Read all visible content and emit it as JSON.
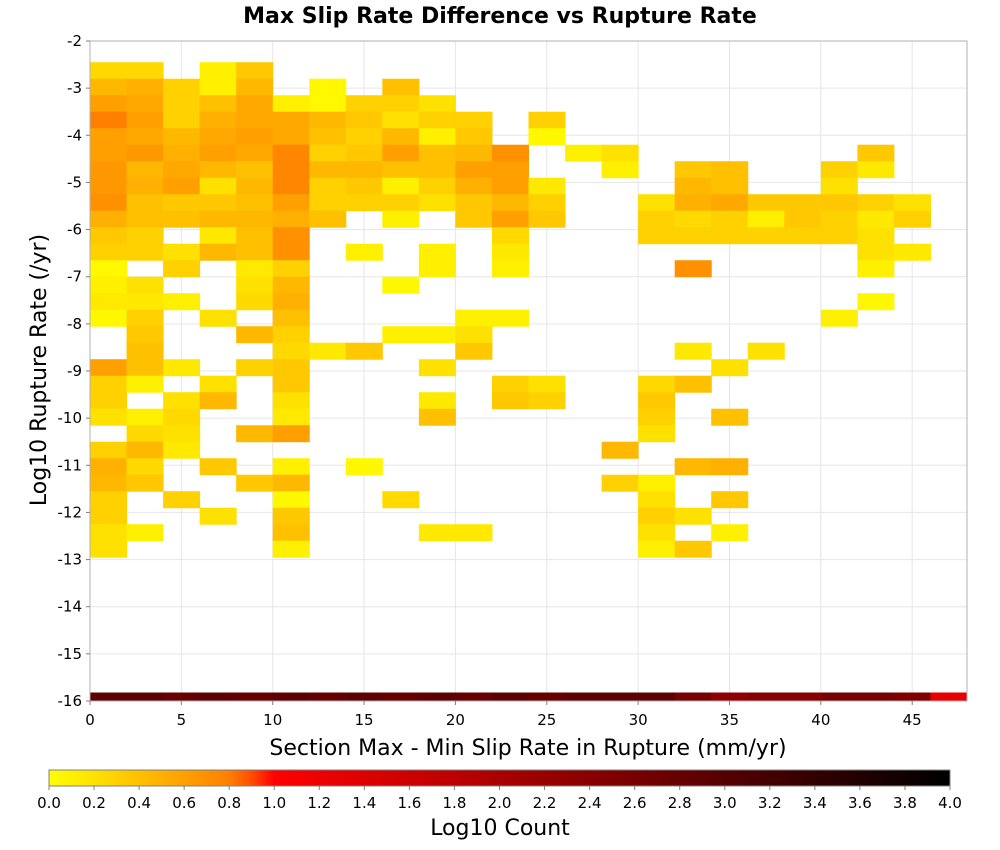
{
  "chart_data": {
    "type": "heatmap",
    "title": "Max Slip Rate Difference vs Rupture Rate",
    "xlabel": "Section Max - Min Slip Rate in Rupture (mm/yr)",
    "ylabel": "Log10 Rupture Rate (/yr)",
    "xlim": [
      0,
      48
    ],
    "ylim": [
      -16,
      -2
    ],
    "x_ticks": [
      "0",
      "5",
      "10",
      "15",
      "20",
      "25",
      "30",
      "35",
      "40",
      "45"
    ],
    "y_ticks": [
      "-2",
      "-3",
      "-4",
      "-5",
      "-6",
      "-7",
      "-8",
      "-9",
      "-10",
      "-11",
      "-12",
      "-13",
      "-14",
      "-15",
      "-16"
    ],
    "x_bin_width": 2,
    "y_bin_height": 0.35,
    "grid": true,
    "colorbar": {
      "label": "Log10 Count",
      "min": 0.0,
      "max": 4.0,
      "ticks": [
        "0.0",
        "0.2",
        "0.4",
        "0.6",
        "0.8",
        "1.0",
        "1.2",
        "1.4",
        "1.6",
        "1.8",
        "2.0",
        "2.2",
        "2.4",
        "2.6",
        "2.8",
        "3.0",
        "3.2",
        "3.4",
        "3.6",
        "3.8",
        "4.0"
      ],
      "stops": [
        [
          0.0,
          "#ffff00"
        ],
        [
          0.2,
          "#ffe100"
        ],
        [
          0.4,
          "#ffc000"
        ],
        [
          0.6,
          "#ffa000"
        ],
        [
          0.8,
          "#ff7f00"
        ],
        [
          0.9,
          "#ff4c00"
        ],
        [
          1.0,
          "#ff0000"
        ],
        [
          1.4,
          "#dd0000"
        ],
        [
          1.8,
          "#bb0000"
        ],
        [
          2.2,
          "#990000"
        ],
        [
          2.6,
          "#770000"
        ],
        [
          3.0,
          "#550000"
        ],
        [
          3.4,
          "#330000"
        ],
        [
          4.0,
          "#000000"
        ]
      ]
    },
    "rows": [
      {
        "y": -2.45,
        "x": [
          0,
          2,
          6,
          8
        ],
        "v": [
          0.25,
          0.25,
          0.1,
          0.35
        ]
      },
      {
        "y": -2.8,
        "x": [
          0,
          2,
          4,
          6,
          8,
          12,
          16
        ],
        "v": [
          0.45,
          0.5,
          0.3,
          0.1,
          0.45,
          0.05,
          0.4
        ]
      },
      {
        "y": -3.15,
        "x": [
          0,
          2,
          4,
          6,
          8,
          10,
          12,
          14,
          16,
          18
        ],
        "v": [
          0.6,
          0.55,
          0.3,
          0.4,
          0.55,
          0.1,
          0.05,
          0.3,
          0.3,
          0.2
        ]
      },
      {
        "y": -3.5,
        "x": [
          0,
          2,
          4,
          6,
          8,
          10,
          12,
          14,
          16,
          18,
          20,
          24
        ],
        "v": [
          0.8,
          0.6,
          0.3,
          0.5,
          0.55,
          0.55,
          0.45,
          0.35,
          0.2,
          0.3,
          0.3,
          0.3
        ]
      },
      {
        "y": -3.85,
        "x": [
          0,
          2,
          4,
          6,
          8,
          10,
          12,
          14,
          16,
          18,
          20,
          24
        ],
        "v": [
          0.6,
          0.55,
          0.45,
          0.55,
          0.6,
          0.55,
          0.4,
          0.3,
          0.45,
          0.1,
          0.35,
          0.05
        ]
      },
      {
        "y": -4.2,
        "x": [
          0,
          2,
          4,
          6,
          8,
          10,
          12,
          14,
          16,
          18,
          20,
          22,
          26,
          28,
          42
        ],
        "v": [
          0.6,
          0.65,
          0.5,
          0.6,
          0.55,
          0.75,
          0.3,
          0.35,
          0.6,
          0.4,
          0.45,
          0.7,
          0.1,
          0.2,
          0.35
        ]
      },
      {
        "y": -4.55,
        "x": [
          0,
          2,
          4,
          6,
          8,
          10,
          12,
          14,
          16,
          18,
          20,
          22,
          28,
          32,
          34,
          40,
          42
        ],
        "v": [
          0.65,
          0.45,
          0.55,
          0.45,
          0.4,
          0.75,
          0.45,
          0.45,
          0.4,
          0.4,
          0.6,
          0.6,
          0.1,
          0.35,
          0.4,
          0.3,
          0.15
        ]
      },
      {
        "y": -4.9,
        "x": [
          0,
          2,
          4,
          6,
          8,
          10,
          12,
          14,
          16,
          18,
          20,
          22,
          24,
          32,
          34,
          40
        ],
        "v": [
          0.65,
          0.5,
          0.6,
          0.2,
          0.45,
          0.75,
          0.3,
          0.35,
          0.1,
          0.3,
          0.5,
          0.6,
          0.15,
          0.45,
          0.4,
          0.2
        ]
      },
      {
        "y": -5.25,
        "x": [
          0,
          2,
          4,
          6,
          8,
          10,
          12,
          14,
          16,
          18,
          20,
          22,
          24,
          30,
          32,
          34,
          36,
          38,
          40,
          42,
          44
        ],
        "v": [
          0.7,
          0.4,
          0.35,
          0.35,
          0.4,
          0.6,
          0.3,
          0.3,
          0.3,
          0.2,
          0.35,
          0.45,
          0.3,
          0.2,
          0.5,
          0.55,
          0.35,
          0.35,
          0.35,
          0.3,
          0.2
        ]
      },
      {
        "y": -5.6,
        "x": [
          0,
          2,
          4,
          6,
          8,
          10,
          12,
          16,
          20,
          22,
          24,
          30,
          32,
          34,
          36,
          38,
          40,
          42,
          44
        ],
        "v": [
          0.5,
          0.4,
          0.4,
          0.45,
          0.45,
          0.5,
          0.4,
          0.1,
          0.35,
          0.6,
          0.35,
          0.3,
          0.25,
          0.3,
          0.1,
          0.35,
          0.3,
          0.15,
          0.3
        ]
      },
      {
        "y": -5.95,
        "x": [
          0,
          2,
          6,
          8,
          10,
          22,
          30,
          32,
          34,
          36,
          38,
          40,
          42
        ],
        "v": [
          0.35,
          0.3,
          0.15,
          0.4,
          0.7,
          0.25,
          0.3,
          0.3,
          0.3,
          0.3,
          0.3,
          0.3,
          0.2
        ]
      },
      {
        "y": -6.3,
        "x": [
          0,
          2,
          4,
          6,
          8,
          10,
          14,
          18,
          22,
          42,
          44
        ],
        "v": [
          0.3,
          0.3,
          0.2,
          0.45,
          0.4,
          0.7,
          0.1,
          0.1,
          0.15,
          0.2,
          0.15
        ]
      },
      {
        "y": -6.65,
        "x": [
          0,
          4,
          8,
          10,
          18,
          22,
          32,
          42
        ],
        "v": [
          0.05,
          0.3,
          0.15,
          0.3,
          0.1,
          0.1,
          0.7,
          0.1
        ]
      },
      {
        "y": -7.0,
        "x": [
          0,
          2,
          8,
          10,
          16
        ],
        "v": [
          0.1,
          0.2,
          0.2,
          0.45,
          0.05
        ]
      },
      {
        "y": -7.35,
        "x": [
          0,
          2,
          4,
          8,
          10,
          42
        ],
        "v": [
          0.15,
          0.15,
          0.1,
          0.25,
          0.5,
          0.05
        ]
      },
      {
        "y": -7.7,
        "x": [
          0,
          2,
          6,
          10,
          20,
          22,
          40
        ],
        "v": [
          0.05,
          0.3,
          0.2,
          0.4,
          0.1,
          0.1,
          0.1
        ]
      },
      {
        "y": -8.05,
        "x": [
          2,
          8,
          10,
          16,
          18,
          20
        ],
        "v": [
          0.35,
          0.45,
          0.3,
          0.1,
          0.1,
          0.2
        ]
      },
      {
        "y": -8.4,
        "x": [
          2,
          10,
          12,
          14,
          20,
          32,
          36
        ],
        "v": [
          0.4,
          0.25,
          0.15,
          0.35,
          0.35,
          0.15,
          0.2
        ]
      },
      {
        "y": -8.75,
        "x": [
          0,
          2,
          4,
          8,
          10,
          18,
          34
        ],
        "v": [
          0.6,
          0.4,
          0.15,
          0.3,
          0.35,
          0.2,
          0.2
        ]
      },
      {
        "y": -9.1,
        "x": [
          0,
          2,
          6,
          10,
          22,
          24,
          30,
          32
        ],
        "v": [
          0.3,
          0.1,
          0.2,
          0.35,
          0.3,
          0.2,
          0.25,
          0.4
        ]
      },
      {
        "y": -9.45,
        "x": [
          0,
          4,
          6,
          10,
          18,
          22,
          24,
          30
        ],
        "v": [
          0.3,
          0.2,
          0.45,
          0.2,
          0.15,
          0.35,
          0.3,
          0.35
        ]
      },
      {
        "y": -9.8,
        "x": [
          0,
          2,
          4,
          10,
          18,
          30,
          34
        ],
        "v": [
          0.2,
          0.1,
          0.25,
          0.15,
          0.4,
          0.3,
          0.4
        ]
      },
      {
        "y": -10.15,
        "x": [
          2,
          4,
          8,
          10,
          30
        ],
        "v": [
          0.25,
          0.2,
          0.45,
          0.6,
          0.2
        ]
      },
      {
        "y": -10.5,
        "x": [
          0,
          2,
          4,
          28
        ],
        "v": [
          0.3,
          0.45,
          0.15,
          0.45
        ]
      },
      {
        "y": -10.85,
        "x": [
          0,
          2,
          6,
          10,
          14,
          32,
          34
        ],
        "v": [
          0.5,
          0.25,
          0.35,
          0.1,
          0.05,
          0.45,
          0.5
        ]
      },
      {
        "y": -11.2,
        "x": [
          0,
          2,
          8,
          10,
          28,
          30
        ],
        "v": [
          0.45,
          0.35,
          0.35,
          0.45,
          0.3,
          0.1
        ]
      },
      {
        "y": -11.55,
        "x": [
          0,
          4,
          10,
          16,
          30,
          34
        ],
        "v": [
          0.3,
          0.3,
          0.05,
          0.25,
          0.2,
          0.35
        ]
      },
      {
        "y": -11.9,
        "x": [
          0,
          6,
          10,
          30,
          32
        ],
        "v": [
          0.3,
          0.2,
          0.35,
          0.3,
          0.2
        ]
      },
      {
        "y": -12.25,
        "x": [
          0,
          2,
          10,
          18,
          20,
          30,
          34
        ],
        "v": [
          0.2,
          0.1,
          0.4,
          0.15,
          0.15,
          0.2,
          0.1
        ]
      },
      {
        "y": -12.6,
        "x": [
          0,
          10,
          30,
          32
        ],
        "v": [
          0.2,
          0.1,
          0.1,
          0.35
        ]
      }
    ],
    "bottom_row": {
      "y": -16.0,
      "values": [
        2.9,
        2.9,
        2.8,
        2.9,
        2.8,
        2.9,
        2.8,
        2.9,
        2.8,
        2.9,
        2.8,
        2.9,
        2.8,
        2.9,
        2.9,
        2.9,
        2.6,
        2.3,
        2.4,
        2.4,
        2.6,
        2.6,
        2.5,
        1.3
      ]
    }
  }
}
